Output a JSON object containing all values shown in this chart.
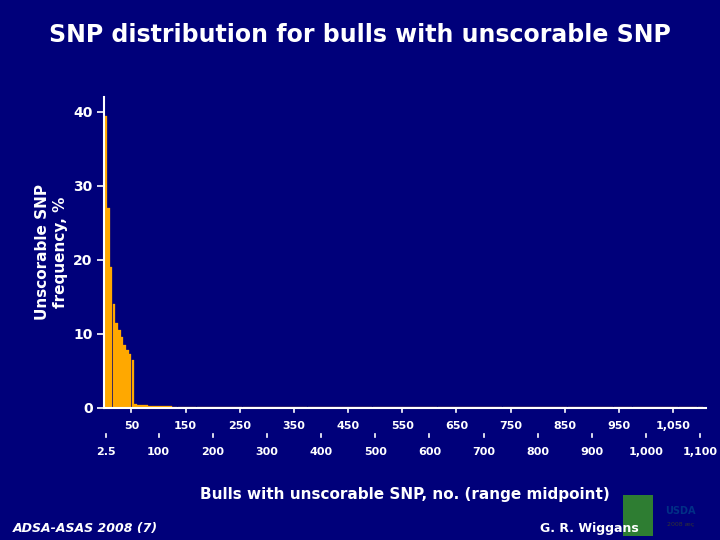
{
  "title": "SNP distribution for bulls with unscorable SNP",
  "xlabel": "Bulls with unscorable SNP, no. (range midpoint)",
  "ylabel": "Unscorable SNP\nfrequency, %",
  "bar_color": "#FFA800",
  "bg_color": "#00007A",
  "plot_bg_color": "#00007A",
  "text_color": "#FFFFFF",
  "axis_color": "#FFFFFF",
  "ylim": [
    0,
    42
  ],
  "yticks": [
    0,
    10,
    20,
    30,
    40
  ],
  "footer_left": "ADSA-ASAS 2008 (7)",
  "footer_right": "G. R. Wiggans",
  "stripe1_color": "#006400",
  "stripe2_color": "#00BFBF",
  "x_upper_ticks": [
    50,
    150,
    250,
    350,
    450,
    550,
    650,
    750,
    850,
    950,
    1050
  ],
  "x_upper_labels": [
    "50",
    "150",
    "250",
    "350",
    "450",
    "550",
    "650",
    "750",
    "850",
    "950",
    "1,050"
  ],
  "x_lower_ticks": [
    2.5,
    100,
    200,
    300,
    400,
    500,
    600,
    700,
    800,
    900,
    1000,
    1100
  ],
  "x_lower_labels": [
    "2.5",
    "100",
    "200",
    "300",
    "400",
    "500",
    "600",
    "700",
    "800",
    "900",
    "1,000",
    "1,100"
  ]
}
